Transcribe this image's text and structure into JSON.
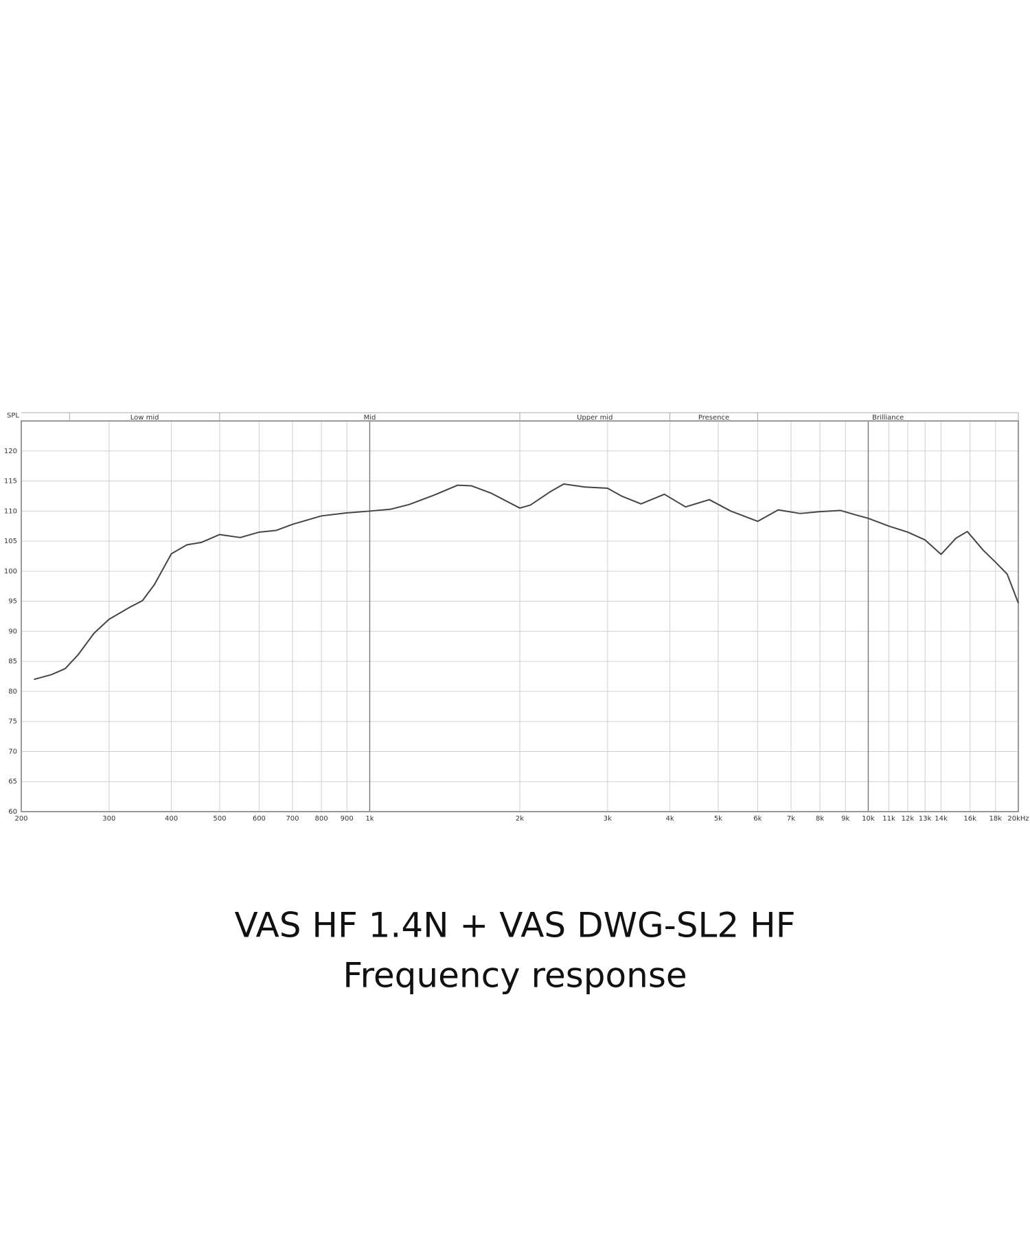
{
  "chart_data": {
    "type": "line",
    "title": "VAS HF 1.4N + VAS DWG-SL2 HF",
    "subtitle": "Frequency response",
    "y_label": "SPL",
    "x_log": true,
    "grid": true,
    "xlim": [
      200,
      20000
    ],
    "ylim": [
      60,
      125
    ],
    "yticks": [
      60,
      65,
      70,
      75,
      80,
      85,
      90,
      95,
      100,
      105,
      110,
      115,
      120
    ],
    "xticks": [
      200,
      300,
      400,
      500,
      600,
      700,
      800,
      900,
      {
        "value": 1000,
        "label": "1k"
      },
      {
        "value": 2000,
        "label": "2k"
      },
      {
        "value": 3000,
        "label": "3k"
      },
      {
        "value": 4000,
        "label": "4k"
      },
      {
        "value": 5000,
        "label": "5k"
      },
      {
        "value": 6000,
        "label": "6k"
      },
      {
        "value": 7000,
        "label": "7k"
      },
      {
        "value": 8000,
        "label": "8k"
      },
      {
        "value": 9000,
        "label": "9k"
      },
      {
        "value": 10000,
        "label": "10k"
      },
      {
        "value": 11000,
        "label": "11k"
      },
      {
        "value": 12000,
        "label": "12k"
      },
      {
        "value": 13000,
        "label": "13k"
      },
      {
        "value": 14000,
        "label": "14k"
      },
      {
        "value": 16000,
        "label": "16k"
      },
      {
        "value": 18000,
        "label": "18k"
      },
      {
        "value": 20000,
        "label": "20kHz"
      }
    ],
    "bands": [
      {
        "name": "Low mid",
        "range": [
          250,
          500
        ]
      },
      {
        "name": "Mid",
        "range": [
          500,
          2000
        ]
      },
      {
        "name": "Upper mid",
        "range": [
          2000,
          4000
        ]
      },
      {
        "name": "Presence",
        "range": [
          4000,
          6000
        ]
      },
      {
        "name": "Brilliance",
        "range": [
          6000,
          20000
        ]
      }
    ],
    "series": [
      {
        "name": "Frequency response",
        "color": "#444444",
        "x": [
          212,
          230,
          245,
          260,
          280,
          300,
          330,
          350,
          370,
          400,
          430,
          460,
          500,
          550,
          600,
          650,
          700,
          800,
          900,
          1000,
          1100,
          1200,
          1350,
          1500,
          1600,
          1750,
          2000,
          2100,
          2300,
          2450,
          2700,
          3000,
          3200,
          3500,
          3900,
          4300,
          4800,
          5300,
          6000,
          6600,
          7300,
          8000,
          8800,
          9500,
          10000,
          11000,
          12000,
          13000,
          14000,
          15000,
          15800,
          17000,
          18000,
          19000,
          20000
        ],
        "values": [
          82.0,
          82.8,
          83.8,
          86.1,
          89.7,
          92.0,
          94.0,
          95.1,
          97.8,
          102.9,
          104.4,
          104.8,
          106.1,
          105.6,
          106.5,
          106.8,
          107.8,
          109.2,
          109.7,
          110.0,
          110.3,
          111.1,
          112.7,
          114.3,
          114.2,
          113.0,
          110.5,
          111.0,
          113.2,
          114.5,
          114.0,
          113.8,
          112.5,
          111.2,
          112.8,
          110.7,
          111.9,
          110.0,
          108.3,
          110.2,
          109.6,
          109.9,
          110.1,
          109.3,
          108.8,
          107.5,
          106.5,
          105.2,
          102.8,
          105.5,
          106.6,
          103.5,
          101.5,
          99.5,
          94.7
        ]
      }
    ]
  }
}
